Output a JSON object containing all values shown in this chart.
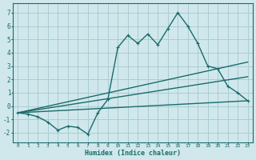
{
  "xlabel": "Humidex (Indice chaleur)",
  "bg_color": "#d0e8ec",
  "grid_color": "#aaccd4",
  "line_color": "#1a6b6b",
  "xlim": [
    -0.5,
    23.5
  ],
  "ylim": [
    -2.7,
    7.7
  ],
  "xticks": [
    0,
    1,
    2,
    3,
    4,
    5,
    6,
    7,
    8,
    9,
    10,
    11,
    12,
    13,
    14,
    15,
    16,
    17,
    18,
    19,
    20,
    21,
    22,
    23
  ],
  "yticks": [
    -2,
    -1,
    0,
    1,
    2,
    3,
    4,
    5,
    6,
    7
  ],
  "series1_x": [
    0,
    1,
    2,
    3,
    4,
    5,
    6,
    7,
    8,
    9,
    10,
    11,
    12,
    13,
    14,
    15,
    16,
    17,
    18,
    19,
    20,
    21,
    22,
    23
  ],
  "series1_y": [
    -0.5,
    -0.6,
    -0.8,
    -1.2,
    -1.8,
    -1.5,
    -1.6,
    -2.1,
    -0.5,
    0.5,
    4.4,
    5.3,
    4.7,
    5.4,
    4.6,
    5.8,
    7.0,
    6.0,
    4.7,
    3.0,
    2.8,
    1.5,
    1.0,
    0.4
  ],
  "series2_x": [
    0,
    23
  ],
  "series2_y": [
    -0.5,
    3.3
  ],
  "series3_x": [
    0,
    23
  ],
  "series3_y": [
    -0.5,
    2.2
  ],
  "series4_x": [
    0,
    23
  ],
  "series4_y": [
    -0.5,
    0.4
  ]
}
